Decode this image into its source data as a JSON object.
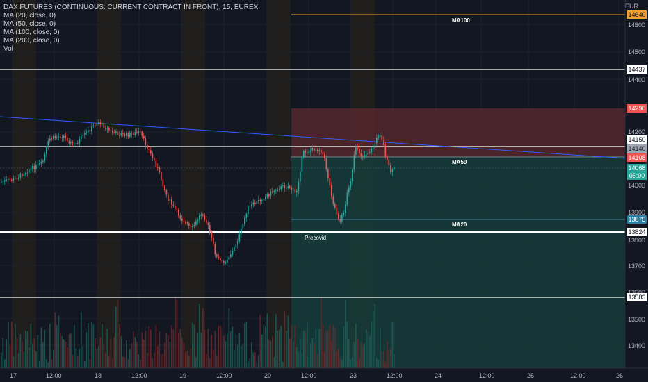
{
  "legend": {
    "symbol": "DAX FUTURES (CONTINUOUS: CURRENT CONTRACT IN FRONT), 15, EUREX",
    "ma20": "MA (20, close, 0)",
    "ma50": "MA (50, close, 0)",
    "ma100": "MA (100, close, 0)",
    "ma200": "MA (200, close, 0)",
    "vol": "Vol"
  },
  "currency": "EUR",
  "price_axis": [
    "14600",
    "14500",
    "14400",
    "14200",
    "14000",
    "13900",
    "13800",
    "13700",
    "13600",
    "13500",
    "13400"
  ],
  "price_tags": {
    "t14640": "14640",
    "t14437": "14437",
    "t14290": "14290",
    "t14150": "14150",
    "t14140": "14140",
    "t14108": "14108",
    "t14068": "14068",
    "t0500": "05:00",
    "t13875": "13875",
    "t13824": "13824",
    "t13583": "13583"
  },
  "time_axis": [
    "17",
    "12:00",
    "18",
    "12:00",
    "19",
    "12:00",
    "20",
    "12:00",
    "23",
    "12:00",
    "24",
    "12:00",
    "25",
    "12:00",
    "26"
  ],
  "ma_labels": {
    "ma100": "MA100",
    "ma50": "MA50",
    "ma20": "MA20"
  },
  "annotation": "Precovid",
  "colors": {
    "bg": "#131722",
    "up": "#26a69a",
    "down": "#ef5350",
    "session": "#3b2f1f",
    "stop_zone": "#5c2a2e",
    "target_zone": "#163c39",
    "ma100": "#f0a030",
    "trendline": "#2962ff"
  },
  "chart_data": {
    "type": "candlestick",
    "y_axis_range": [
      13350,
      14680
    ],
    "horizontal_levels": [
      14640,
      14437,
      14150,
      13824,
      13583
    ],
    "position": {
      "stop": 14290,
      "entry": 14108,
      "target": 13824
    }
  }
}
